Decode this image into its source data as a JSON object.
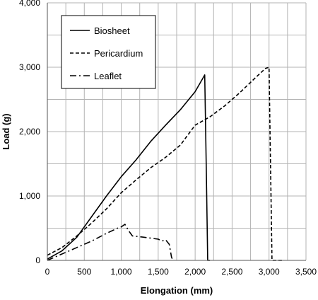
{
  "chart_data": {
    "type": "line",
    "title": "",
    "xlabel": "Elongation (mm)",
    "ylabel": "Load (g)",
    "xlim": [
      0,
      3500
    ],
    "ylim": [
      0,
      4000
    ],
    "xticks": [
      {
        "value": 0,
        "label": "0"
      },
      {
        "value": 500,
        "label": "500"
      },
      {
        "value": 1000,
        "label": "1,000"
      },
      {
        "value": 1500,
        "label": "1,500"
      },
      {
        "value": 2000,
        "label": "2,000"
      },
      {
        "value": 2500,
        "label": "2,500"
      },
      {
        "value": 3000,
        "label": "3,000"
      },
      {
        "value": 3500,
        "label": "3,500"
      }
    ],
    "yticks": [
      {
        "value": 0,
        "label": "0"
      },
      {
        "value": 1000,
        "label": "1,000"
      },
      {
        "value": 2000,
        "label": "2,000"
      },
      {
        "value": 3000,
        "label": "3,000"
      },
      {
        "value": 4000,
        "label": "4,000"
      }
    ],
    "grid": true,
    "legend_position": "top-left",
    "series": [
      {
        "name": "Biosheet",
        "style": "solid",
        "color": "#000000",
        "points": [
          [
            0,
            20
          ],
          [
            200,
            150
          ],
          [
            400,
            360
          ],
          [
            600,
            680
          ],
          [
            800,
            1000
          ],
          [
            1000,
            1300
          ],
          [
            1200,
            1560
          ],
          [
            1400,
            1850
          ],
          [
            1600,
            2100
          ],
          [
            1800,
            2340
          ],
          [
            2000,
            2620
          ],
          [
            2100,
            2820
          ],
          [
            2130,
            2880
          ],
          [
            2150,
            1500
          ],
          [
            2170,
            0
          ],
          [
            2200,
            0
          ]
        ]
      },
      {
        "name": "Pericardium",
        "style": "dashed",
        "color": "#000000",
        "points": [
          [
            0,
            80
          ],
          [
            200,
            200
          ],
          [
            400,
            380
          ],
          [
            600,
            580
          ],
          [
            800,
            800
          ],
          [
            1000,
            1050
          ],
          [
            1200,
            1250
          ],
          [
            1400,
            1440
          ],
          [
            1600,
            1600
          ],
          [
            1800,
            1790
          ],
          [
            2000,
            2100
          ],
          [
            2200,
            2230
          ],
          [
            2400,
            2400
          ],
          [
            2600,
            2600
          ],
          [
            2800,
            2820
          ],
          [
            2950,
            2980
          ],
          [
            3000,
            3000
          ],
          [
            3020,
            1500
          ],
          [
            3040,
            0
          ],
          [
            3200,
            0
          ]
        ]
      },
      {
        "name": "Leaflet",
        "style": "dash-dot",
        "color": "#000000",
        "points": [
          [
            0,
            0
          ],
          [
            200,
            100
          ],
          [
            400,
            200
          ],
          [
            600,
            300
          ],
          [
            800,
            420
          ],
          [
            950,
            500
          ],
          [
            1000,
            520
          ],
          [
            1050,
            560
          ],
          [
            1100,
            460
          ],
          [
            1150,
            380
          ],
          [
            1300,
            360
          ],
          [
            1500,
            330
          ],
          [
            1550,
            300
          ],
          [
            1600,
            320
          ],
          [
            1650,
            250
          ],
          [
            1680,
            50
          ],
          [
            1700,
            0
          ]
        ]
      }
    ]
  }
}
